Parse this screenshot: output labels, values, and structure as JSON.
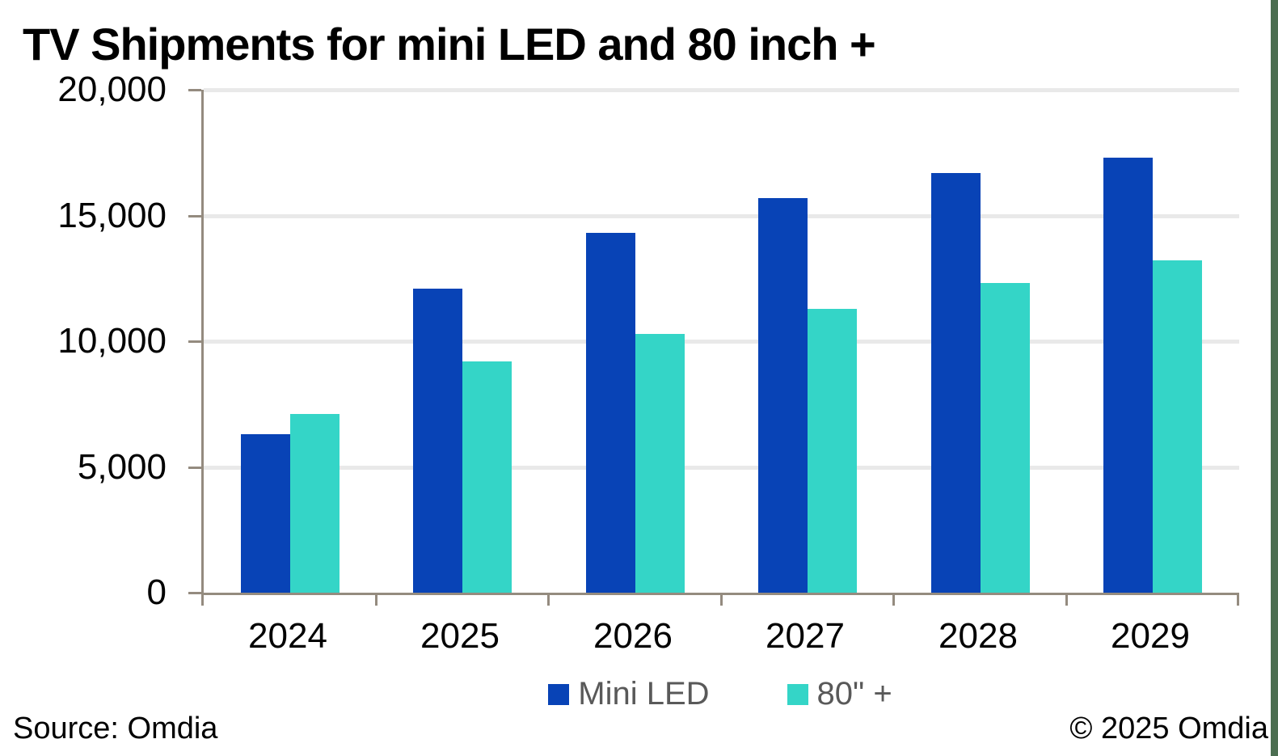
{
  "footer": {
    "source": "Source: Omdia",
    "copyright": "© 2025 Omdia"
  },
  "colors": {
    "mini_led": "#0843b6",
    "eighty_plus": "#34d5c7",
    "axis": "#948b7f",
    "gridline": "#e9e9e9",
    "tick_text": "#000000",
    "legend_text": "#595959",
    "edge_strip": "#4c6e51"
  },
  "chart_data": {
    "type": "bar",
    "title": "TV Shipments for mini LED and 80 inch +",
    "xlabel": "",
    "ylabel": "",
    "categories": [
      "2024",
      "2025",
      "2026",
      "2027",
      "2028",
      "2029"
    ],
    "series": [
      {
        "name": "Mini LED",
        "color_key": "mini_led",
        "values": [
          6300,
          12100,
          14300,
          15700,
          16700,
          17300
        ]
      },
      {
        "name": "80\" +",
        "color_key": "eighty_plus",
        "values": [
          7100,
          9200,
          10300,
          11300,
          12300,
          13200
        ]
      }
    ],
    "ylim": [
      0,
      20000
    ],
    "ytick_values": [
      0,
      5000,
      10000,
      15000,
      20000
    ],
    "ytick_labels": [
      "0",
      "5,000",
      "10,000",
      "15,000",
      "20,000"
    ],
    "grid": true,
    "legend_position": "bottom"
  }
}
